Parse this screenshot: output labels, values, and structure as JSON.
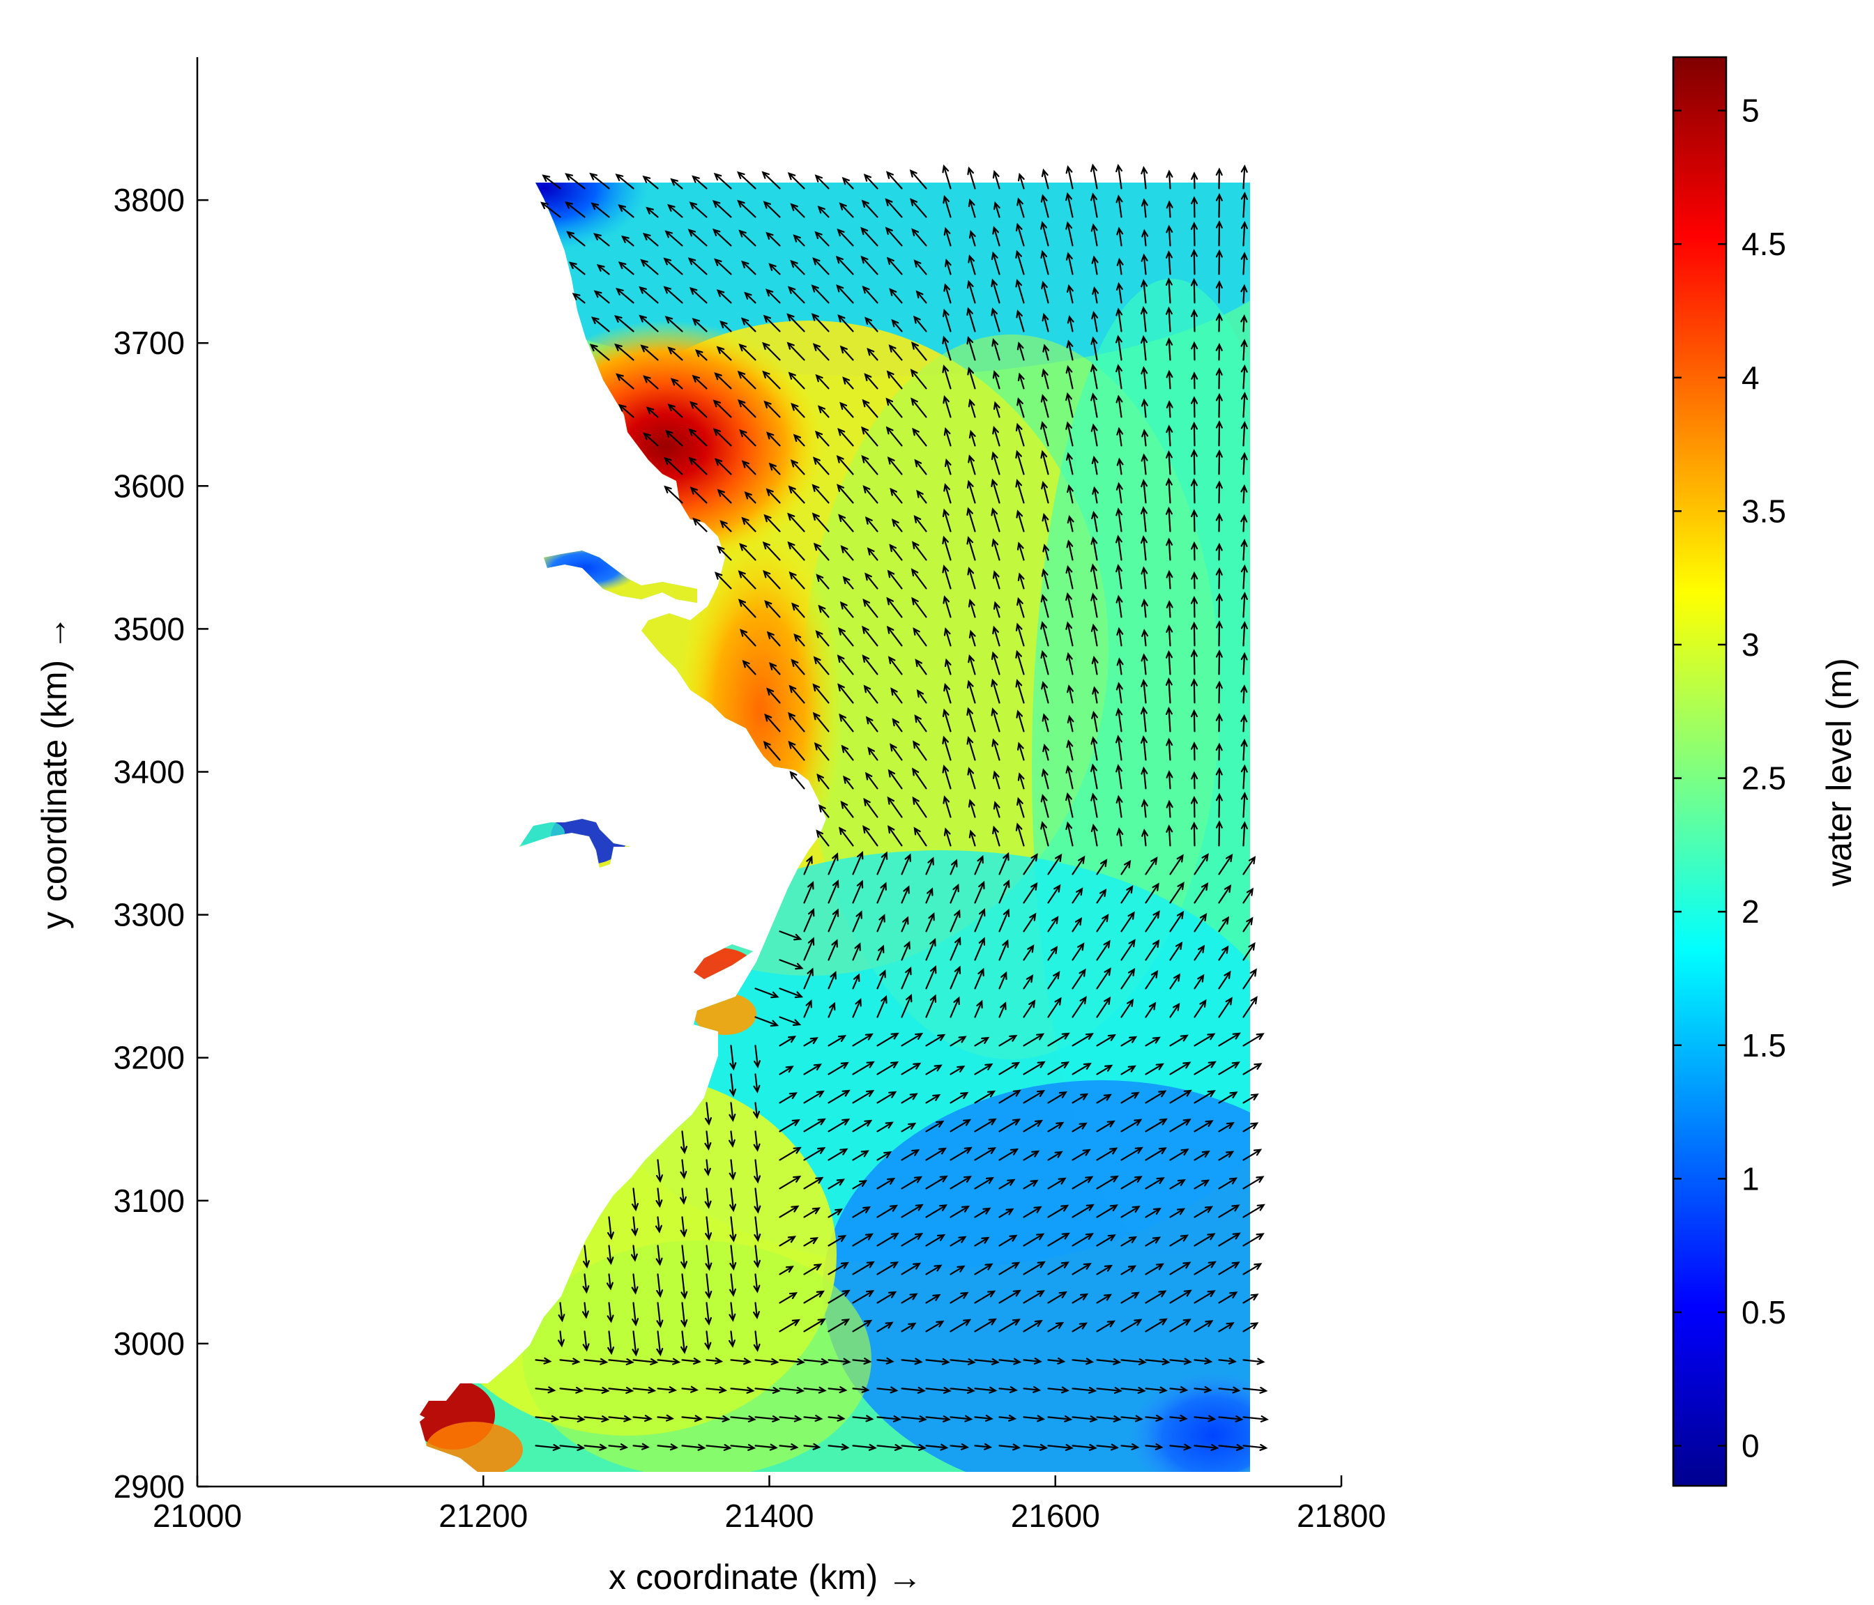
{
  "chart_data": {
    "type": "heatmap",
    "subtype": "filled contour with velocity vector field (quiver)",
    "xlabel": "x coordinate (km) →",
    "ylabel": "y coordinate (km) →",
    "xlim": [
      21000,
      21800
    ],
    "ylim": [
      2900,
      3900
    ],
    "x_ticks": [
      21000,
      21200,
      21400,
      21600,
      21800
    ],
    "y_ticks": [
      2900,
      3000,
      3100,
      3200,
      3300,
      3400,
      3500,
      3600,
      3700,
      3800
    ],
    "x_tick_labels": [
      "21000",
      "21200",
      "21400",
      "21600",
      "21800"
    ],
    "y_tick_labels": [
      "2900",
      "3000",
      "3100",
      "3200",
      "3300",
      "3400",
      "3500",
      "3600",
      "3700",
      "3800"
    ],
    "grid": false,
    "domain_extent": {
      "x": [
        21225,
        21733
      ],
      "y": [
        2915,
        3813
      ]
    },
    "colormap": "jet",
    "colorbar": {
      "label": "water level (m)",
      "range": [
        -0.15,
        5.2
      ],
      "ticks": [
        0,
        0.5,
        1,
        1.5,
        2,
        2.5,
        3,
        3.5,
        4,
        4.5,
        5
      ],
      "tick_labels": [
        "0",
        "0.5",
        "1",
        "1.5",
        "2",
        "2.5",
        "3",
        "3.5",
        "4",
        "4.5",
        "5"
      ],
      "location": "right"
    },
    "water_level_features": [
      {
        "description": "maximum",
        "x": 21320,
        "y": 3620,
        "value": 5.0
      },
      {
        "description": "high along coast",
        "x": 21420,
        "y": 3440,
        "value": 4.0
      },
      {
        "description": "high at southern estuary",
        "x": 21180,
        "y": 2950,
        "value": 4.9
      },
      {
        "description": "low north-west corner",
        "x": 21250,
        "y": 3810,
        "value": 0.9
      },
      {
        "description": "low south-east",
        "x": 21700,
        "y": 2940,
        "value": 0.8
      },
      {
        "description": "estuary upstream low",
        "x": 21250,
        "y": 3540,
        "value": 1.2
      },
      {
        "description": "estuary upstream low",
        "x": 21270,
        "y": 3350,
        "value": 0.6
      }
    ]
  }
}
